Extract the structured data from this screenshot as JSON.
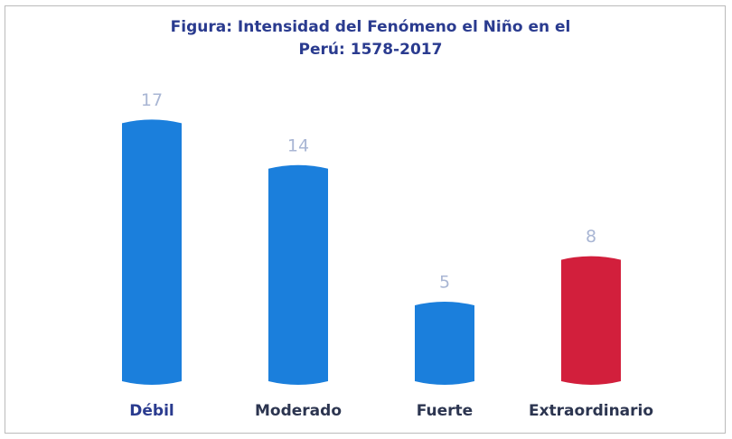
{
  "chart_data": {
    "type": "bar",
    "title": "Figura: Intensidad del Fenómeno el Niño en el Perú: 1578-2017",
    "categories": [
      "Débil",
      "Moderado",
      "Fuerte",
      "Extraordinario"
    ],
    "values": [
      17,
      14,
      5,
      8
    ],
    "colors": [
      "#1b7fdc",
      "#1b7fdc",
      "#1b7fdc",
      "#d21f3c"
    ]
  }
}
